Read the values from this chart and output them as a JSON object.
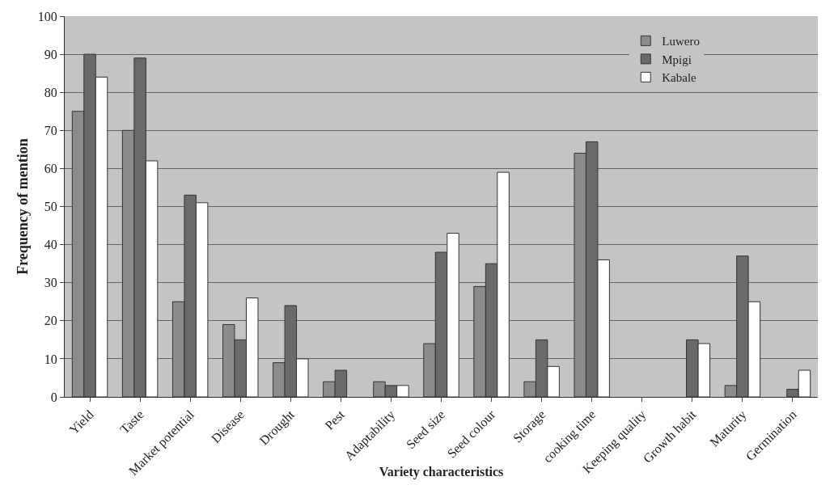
{
  "chart_data": {
    "type": "bar",
    "xlabel": "Variety characteristics",
    "ylabel": "Frequency of mention",
    "categories": [
      "Yield",
      "Taste",
      "Market potential",
      "Disease",
      "Drought",
      "Pest",
      "Adaptability",
      "Seed size",
      "Seed colour",
      "Storage",
      "cooking time",
      "Keeping quality",
      "Growth habit",
      "Maturity",
      "Germination"
    ],
    "series": [
      {
        "name": "Luwero",
        "color": "#8c8c8c",
        "values": [
          75,
          70,
          25,
          19,
          9,
          4,
          4,
          14,
          29,
          4,
          64,
          null,
          null,
          3,
          null
        ]
      },
      {
        "name": "Mpigi",
        "color": "#6a6a6a",
        "values": [
          90,
          89,
          53,
          15,
          24,
          7,
          3,
          38,
          35,
          15,
          67,
          null,
          15,
          37,
          2
        ]
      },
      {
        "name": "Kabale",
        "color": "#ffffff",
        "values": [
          84,
          62,
          51,
          26,
          10,
          null,
          3,
          43,
          59,
          8,
          36,
          null,
          14,
          25,
          7
        ]
      }
    ],
    "ylim": [
      0,
      100
    ],
    "yticks": [
      0,
      10,
      20,
      30,
      40,
      50,
      60,
      70,
      80,
      90,
      100
    ],
    "grid": "y",
    "legend": "top right"
  }
}
